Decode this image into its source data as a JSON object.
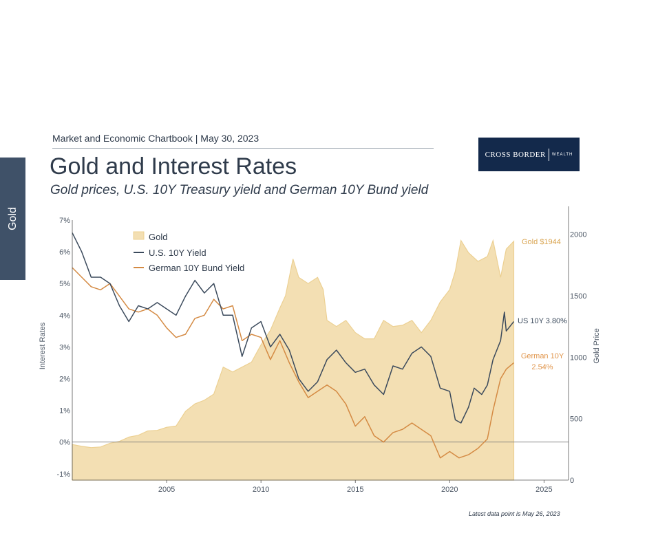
{
  "side_tab": "Gold",
  "header_line": "Market and Economic Chartbook | May 30, 2023",
  "title": "Gold and Interest Rates",
  "subtitle": "Gold prices, U.S. 10Y Treasury yield and German 10Y Bund yield",
  "logo": {
    "name": "CROSS BORDER",
    "tagline": "WEALTH"
  },
  "footnote": "Latest data point is May 26, 2023",
  "colors": {
    "gold_fill": "#f3dfb3",
    "gold_line": "#ecd092",
    "us": "#3b4a5c",
    "german": "#d48a43",
    "gold_label": "#d9a450",
    "us_label": "#3b4a5c",
    "german_label": "#e0954b"
  },
  "chart_data": {
    "type": "line",
    "ylabel": "Interest Rates",
    "y2label": "Gold Price",
    "ylim": [
      -1.2,
      7
    ],
    "y2lim": [
      0,
      2200
    ],
    "xlim": [
      2000,
      2026.3
    ],
    "x_ticks": [
      "2005",
      "2010",
      "2015",
      "2020",
      "2025"
    ],
    "y_ticks": [
      "7%",
      "6%",
      "5%",
      "4%",
      "3%",
      "2%",
      "1%",
      "0%",
      "-1%"
    ],
    "y2_ticks": [
      "2000",
      "1500",
      "1000",
      "500",
      "0"
    ],
    "legend": [
      "Gold",
      "U.S. 10Y Yield",
      "German 10Y Bund Yield"
    ],
    "legend_position": "top-left",
    "end_labels": {
      "gold": "Gold $1944",
      "us": "US 10Y 3.80%",
      "german_1": "German 10Y",
      "german_2": "2.54%"
    },
    "series": [
      {
        "name": "Gold",
        "axis": "right",
        "x": [
          2000,
          2000.5,
          2001,
          2001.5,
          2002,
          2002.5,
          2003,
          2003.5,
          2004,
          2004.5,
          2005,
          2005.5,
          2006,
          2006.5,
          2007,
          2007.5,
          2008,
          2008.5,
          2009,
          2009.5,
          2010,
          2010.5,
          2011,
          2011.3,
          2011.7,
          2012,
          2012.5,
          2013,
          2013.3,
          2013.5,
          2014,
          2014.5,
          2015,
          2015.5,
          2016,
          2016.5,
          2017,
          2017.5,
          2018,
          2018.5,
          2019,
          2019.5,
          2020,
          2020.3,
          2020.6,
          2021,
          2021.5,
          2022,
          2022.3,
          2022.7,
          2023,
          2023.4
        ],
        "values": [
          290,
          275,
          265,
          270,
          300,
          315,
          350,
          365,
          400,
          405,
          430,
          440,
          560,
          620,
          650,
          700,
          920,
          880,
          920,
          960,
          1100,
          1220,
          1400,
          1500,
          1800,
          1650,
          1600,
          1650,
          1550,
          1300,
          1250,
          1300,
          1200,
          1150,
          1150,
          1300,
          1250,
          1260,
          1300,
          1200,
          1300,
          1450,
          1550,
          1700,
          1950,
          1850,
          1780,
          1820,
          1950,
          1650,
          1880,
          1944
        ]
      },
      {
        "name": "U.S. 10Y Yield",
        "axis": "left",
        "x": [
          2000,
          2000.5,
          2001,
          2001.5,
          2002,
          2002.5,
          2003,
          2003.5,
          2004,
          2004.5,
          2005,
          2005.5,
          2006,
          2006.5,
          2007,
          2007.5,
          2008,
          2008.5,
          2009,
          2009.5,
          2010,
          2010.5,
          2011,
          2011.5,
          2012,
          2012.5,
          2013,
          2013.5,
          2014,
          2014.5,
          2015,
          2015.5,
          2016,
          2016.5,
          2017,
          2017.5,
          2018,
          2018.5,
          2019,
          2019.5,
          2020,
          2020.3,
          2020.6,
          2021,
          2021.3,
          2021.7,
          2022,
          2022.3,
          2022.7,
          2022.9,
          2023,
          2023.4
        ],
        "values": [
          6.6,
          6.0,
          5.2,
          5.2,
          5.0,
          4.3,
          3.8,
          4.3,
          4.2,
          4.4,
          4.2,
          4.0,
          4.6,
          5.1,
          4.7,
          5.0,
          4.0,
          4.0,
          2.7,
          3.6,
          3.8,
          3.0,
          3.4,
          2.9,
          2.0,
          1.6,
          1.9,
          2.6,
          2.9,
          2.5,
          2.2,
          2.3,
          1.8,
          1.5,
          2.4,
          2.3,
          2.8,
          3.0,
          2.7,
          1.7,
          1.6,
          0.7,
          0.6,
          1.1,
          1.7,
          1.5,
          1.8,
          2.6,
          3.2,
          4.1,
          3.5,
          3.8
        ]
      },
      {
        "name": "German 10Y Bund Yield",
        "axis": "left",
        "x": [
          2000,
          2000.5,
          2001,
          2001.5,
          2002,
          2002.5,
          2003,
          2003.5,
          2004,
          2004.5,
          2005,
          2005.5,
          2006,
          2006.5,
          2007,
          2007.5,
          2008,
          2008.5,
          2009,
          2009.5,
          2010,
          2010.5,
          2011,
          2011.5,
          2012,
          2012.5,
          2013,
          2013.5,
          2014,
          2014.5,
          2015,
          2015.5,
          2016,
          2016.5,
          2017,
          2017.5,
          2018,
          2018.5,
          2019,
          2019.5,
          2020,
          2020.5,
          2021,
          2021.5,
          2022,
          2022.3,
          2022.7,
          2023,
          2023.4
        ],
        "values": [
          5.5,
          5.2,
          4.9,
          4.8,
          5.0,
          4.6,
          4.2,
          4.1,
          4.2,
          4.0,
          3.6,
          3.3,
          3.4,
          3.9,
          4.0,
          4.5,
          4.2,
          4.3,
          3.2,
          3.4,
          3.3,
          2.6,
          3.2,
          2.5,
          1.9,
          1.4,
          1.6,
          1.8,
          1.6,
          1.2,
          0.5,
          0.8,
          0.2,
          0.0,
          0.3,
          0.4,
          0.6,
          0.4,
          0.2,
          -0.5,
          -0.3,
          -0.5,
          -0.4,
          -0.2,
          0.1,
          1.0,
          2.0,
          2.3,
          2.5
        ]
      }
    ]
  }
}
